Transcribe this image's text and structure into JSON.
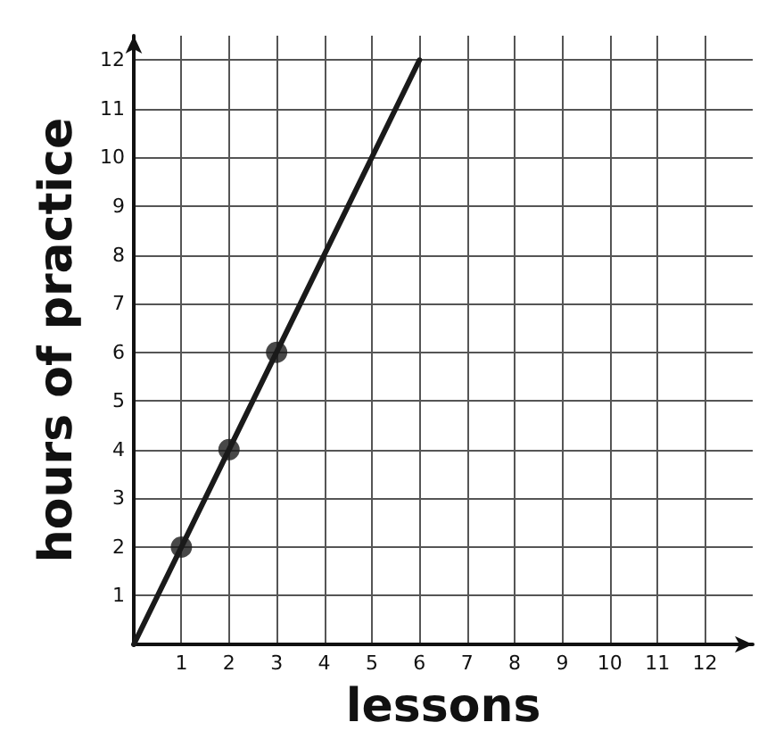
{
  "chart_data": {
    "type": "line",
    "xlabel": "lessons",
    "ylabel": "hours of practice",
    "series": [
      {
        "x": [
          0,
          6
        ],
        "values": [
          0,
          12
        ],
        "color": "#1a1a1a",
        "marker": "none",
        "line_style": "solid"
      },
      {
        "type": "scatter",
        "x": [
          1,
          2,
          3
        ],
        "values": [
          2,
          4,
          6
        ],
        "color": "#1a1a1a",
        "marker": "circle"
      }
    ],
    "xlim": [
      0,
      13
    ],
    "ylim": [
      0,
      12.5
    ],
    "xticks": [
      {
        "value": 0,
        "label": null
      },
      1,
      2,
      3,
      4,
      5,
      6,
      7,
      8,
      9,
      10,
      11,
      12
    ],
    "yticks": [
      {
        "value": 0,
        "label": null
      },
      1,
      2,
      3,
      4,
      5,
      6,
      7,
      8,
      9,
      10,
      11,
      12
    ],
    "grid": true
  }
}
